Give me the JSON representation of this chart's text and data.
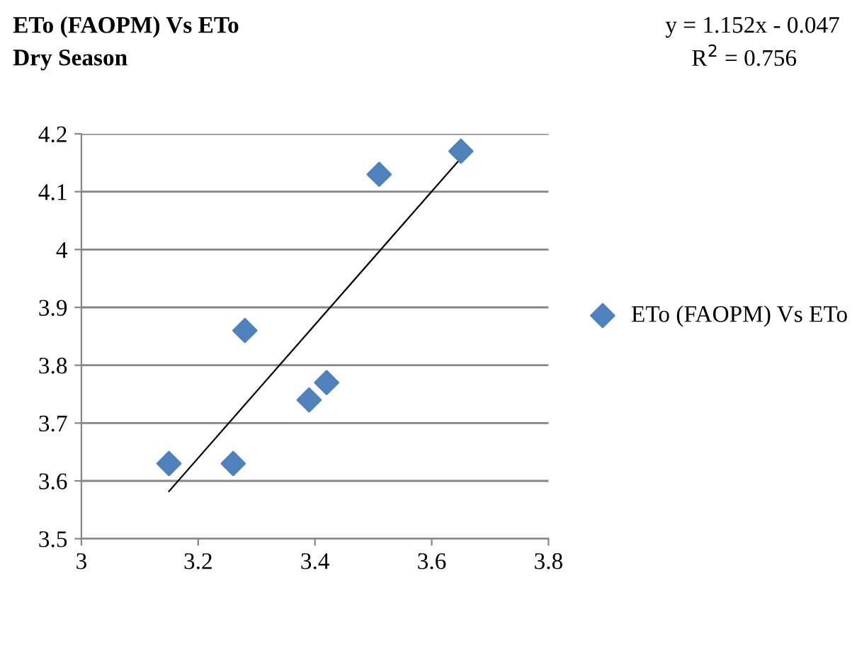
{
  "chart_data": {
    "type": "scatter",
    "title": "ETo (FAOPM) Vs ETo",
    "subtitle": "Dry Season",
    "annotations": [
      "y = 1.152x - 0.047",
      "R$^{2}$ = 0.756"
    ],
    "xlim": [
      3,
      3.8
    ],
    "xticks": [
      3,
      3.2,
      3.4,
      3.6,
      3.8
    ],
    "ylim": [
      3.5,
      4.2
    ],
    "yticks": [
      3.5,
      3.6,
      3.7,
      3.8,
      3.9,
      4,
      4.1,
      4.2
    ],
    "grid": "y",
    "legend": "right",
    "series": [
      {
        "name": "ETo (FAOPM) Vs ETo",
        "color": "#4f81bd",
        "marker": "diamond",
        "x": [
          3.15,
          3.26,
          3.28,
          3.39,
          3.42,
          3.51,
          3.65
        ],
        "values": [
          3.63,
          3.63,
          3.86,
          3.74,
          3.77,
          4.13,
          4.17
        ]
      },
      {
        "type": "line",
        "color": "#000000",
        "marker": "none",
        "x": [
          3.15,
          3.65
        ],
        "values": [
          3.582,
          4.158
        ]
      }
    ]
  }
}
